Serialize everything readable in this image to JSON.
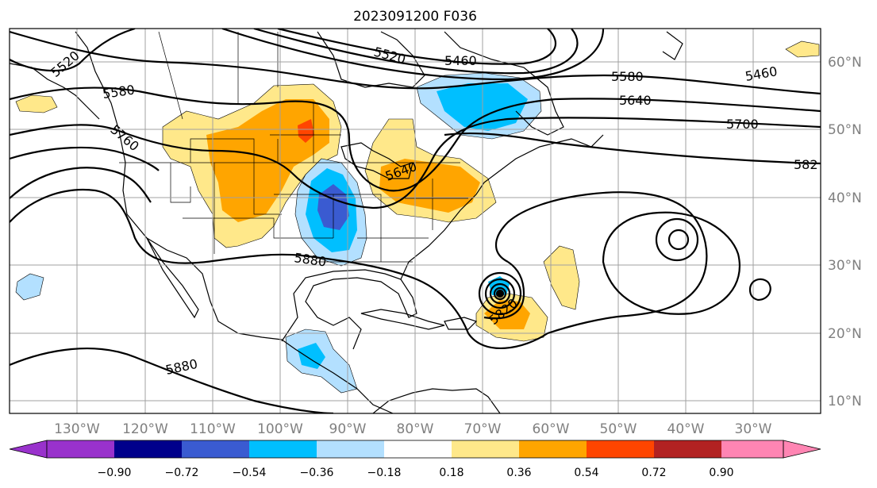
{
  "title": "2023091200 F036",
  "longitude_labels": [
    "130°W",
    "120°W",
    "110°W",
    "100°W",
    "90°W",
    "80°W",
    "70°W",
    "60°W",
    "50°W",
    "40°W",
    "30°W"
  ],
  "latitude_labels": [
    "60°N",
    "50°N",
    "40°N",
    "30°N",
    "20°N",
    "10°N"
  ],
  "contour_labels": [
    "5520",
    "5580",
    "5760",
    "5520",
    "5460",
    "5580",
    "5640",
    "5700",
    "582",
    "5640",
    "5880",
    "5820",
    "5880",
    "5460"
  ],
  "colorbar": {
    "ticks": [
      "−0.90",
      "−0.72",
      "−0.54",
      "−0.36",
      "−0.18",
      "0.18",
      "0.36",
      "0.54",
      "0.72",
      "0.90"
    ],
    "colors": [
      "#9932cc",
      "#00008b",
      "#3a5bd1",
      "#00bfff",
      "#b3e0ff",
      "#ffffff",
      "#ffe88a",
      "#ffa500",
      "#ff4500",
      "#b22222",
      "#ff85b3"
    ]
  },
  "colors": {
    "land_outline": "#000000",
    "grid": "#a0a0a0",
    "contour": "#000000"
  }
}
